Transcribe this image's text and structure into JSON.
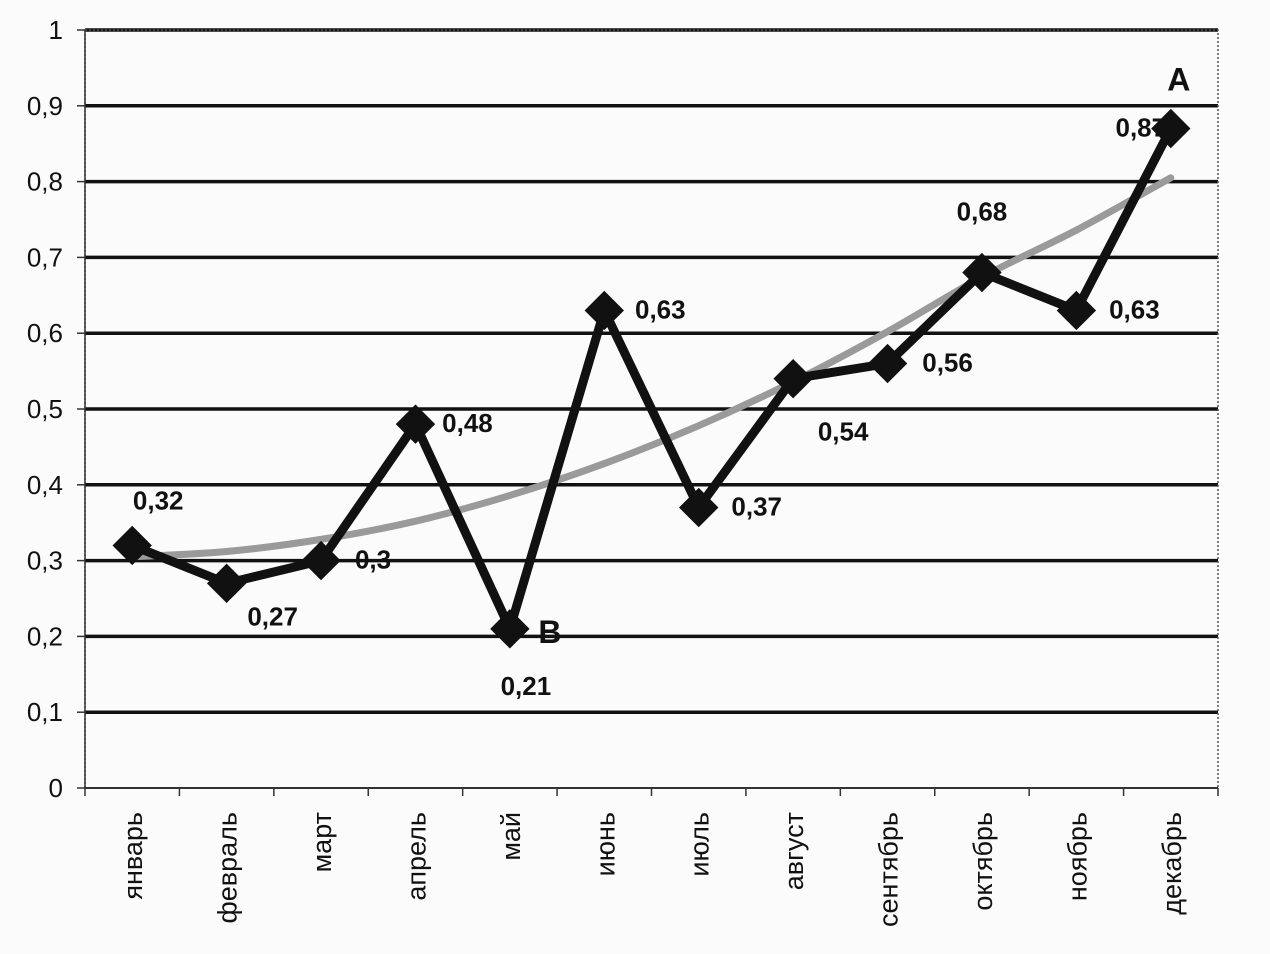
{
  "chart_data": {
    "type": "line",
    "categories": [
      "январь",
      "февраль",
      "март",
      "апрель",
      "май",
      "июнь",
      "июль",
      "август",
      "сентябрь",
      "октябрь",
      "ноябрь",
      "декабрь"
    ],
    "series": [
      {
        "values": [
          0.32,
          0.27,
          0.3,
          0.48,
          0.21,
          0.63,
          0.37,
          0.54,
          0.56,
          0.68,
          0.63,
          0.87
        ],
        "labels": [
          "0,32",
          "0,27",
          "0,3",
          "0,48",
          "0,21",
          "0,63",
          "0,37",
          "0,54",
          "0,56",
          "0,68",
          "0,63",
          "0,87"
        ],
        "color": "#111111",
        "marker": "diamond"
      }
    ],
    "trendline": {
      "type": "polynomial",
      "values": [
        0.305,
        0.312,
        0.328,
        0.352,
        0.386,
        0.428,
        0.478,
        0.536,
        0.602,
        0.674,
        0.736,
        0.805
      ],
      "color": "#9a9a9a"
    },
    "y_ticks": [
      "0",
      "0,1",
      "0,2",
      "0,3",
      "0,4",
      "0,5",
      "0,6",
      "0,7",
      "0,8",
      "0,9",
      "1"
    ],
    "ylim": [
      0,
      1
    ],
    "grid": true,
    "annotations": [
      {
        "text": "A",
        "category_index": 11,
        "value": 0.87
      },
      {
        "text": "B",
        "category_index": 4,
        "value": 0.21
      }
    ],
    "title": "",
    "xlabel": "",
    "ylabel": ""
  }
}
